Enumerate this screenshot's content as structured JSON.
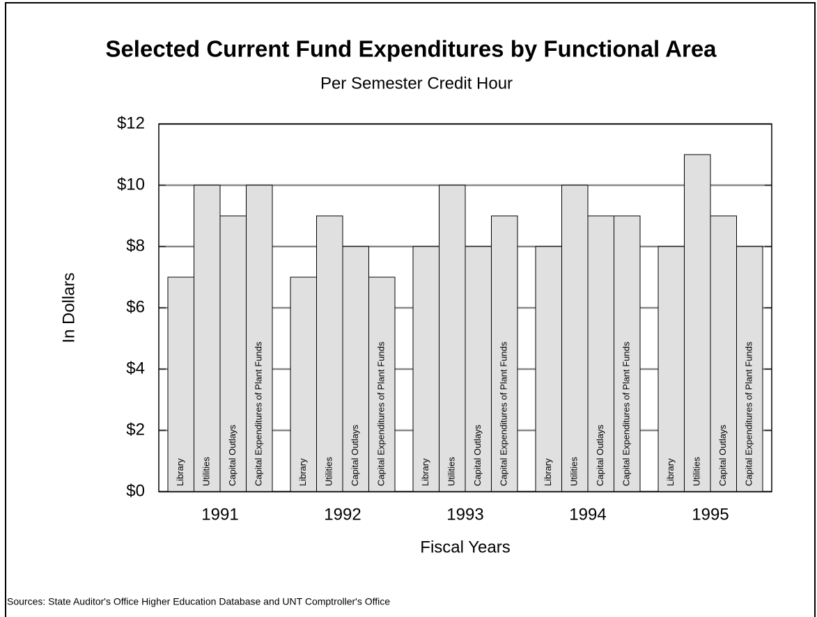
{
  "chart_data": {
    "type": "bar",
    "title": "Selected Current Fund Expenditures by Functional Area",
    "subtitle": "Per Semester Credit Hour",
    "y_label": "In Dollars",
    "x_label": "Fiscal Years",
    "source": "Sources:  State Auditor's Office Higher Education Database and UNT Comptroller's Office",
    "categories": [
      "1991",
      "1992",
      "1993",
      "1994",
      "1995"
    ],
    "series": [
      {
        "name": "Library",
        "color": "#e0e0e0",
        "values": [
          7,
          7,
          8,
          8,
          8
        ]
      },
      {
        "name": "Utilities",
        "color": "#e0e0e0",
        "values": [
          10,
          9,
          10,
          10,
          11
        ]
      },
      {
        "name": "Capital Outlays",
        "color": "#e0e0e0",
        "values": [
          9,
          8,
          8,
          9,
          9
        ]
      },
      {
        "name": "Capital Expenditures of Plant Funds",
        "color": "#e0e0e0",
        "values": [
          10,
          7,
          9,
          9,
          8
        ]
      }
    ],
    "ylim": [
      0,
      12
    ],
    "yticks": [
      {
        "value": 0,
        "label": "$0"
      },
      {
        "value": 2,
        "label": "$2"
      },
      {
        "value": 4,
        "label": "$4"
      },
      {
        "value": 6,
        "label": "$6"
      },
      {
        "value": 8,
        "label": "$8"
      },
      {
        "value": 10,
        "label": "$10"
      },
      {
        "value": 12,
        "label": "$12"
      }
    ],
    "grid": true
  }
}
